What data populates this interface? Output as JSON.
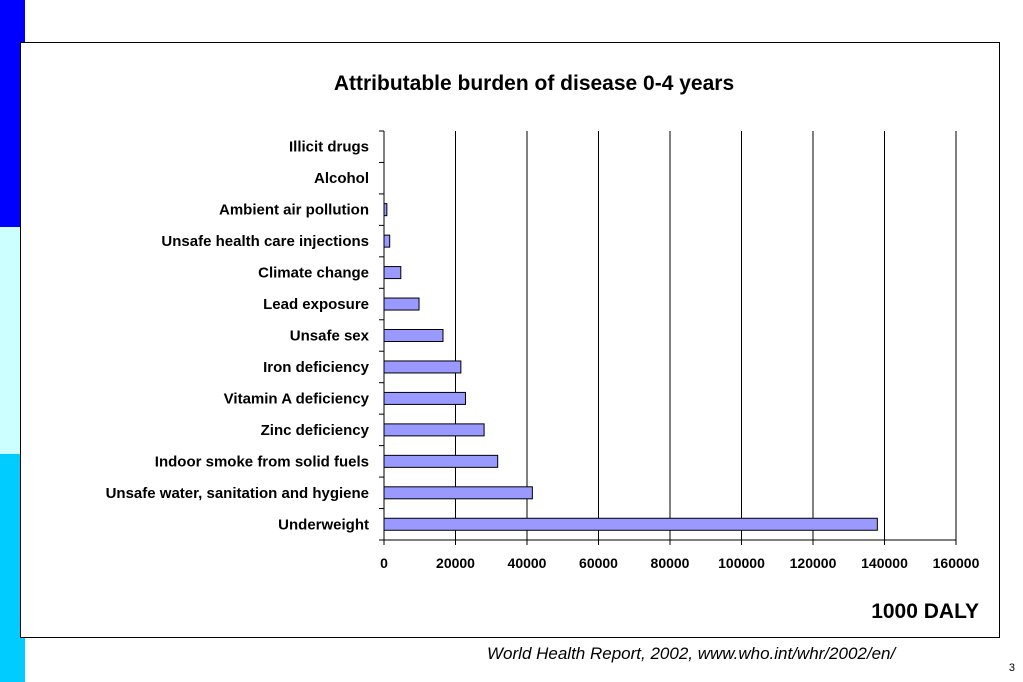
{
  "slide": {
    "source": "World Health Report, 2002, www.who.int/whr/2002/en/",
    "page_number": "3",
    "band_colors": [
      "#0000ff",
      "#ccffff",
      "#00ccff"
    ]
  },
  "chart_data": {
    "type": "bar",
    "orientation": "horizontal",
    "title": "Attributable burden of disease 0-4 years",
    "unit_label": "1000 DALY",
    "categories": [
      "Illicit drugs",
      "Alcohol",
      "Ambient air pollution",
      "Unsafe health care injections",
      "Climate change",
      "Lead exposure",
      "Unsafe sex",
      "Iron deficiency",
      "Vitamin A deficiency",
      "Zinc deficiency",
      "Indoor smoke from solid fuels",
      "Unsafe water, sanitation and hygiene",
      "Underweight"
    ],
    "values": [
      0,
      0,
      800,
      1600,
      4700,
      9800,
      16500,
      21500,
      22800,
      28000,
      31800,
      41500,
      138000
    ],
    "xlim": [
      0,
      160000
    ],
    "xticks": [
      "0",
      "20000",
      "40000",
      "60000",
      "80000",
      "100000",
      "120000",
      "140000",
      "160000"
    ],
    "grid": true,
    "bar_color": "#9999ff",
    "legend": "none"
  }
}
